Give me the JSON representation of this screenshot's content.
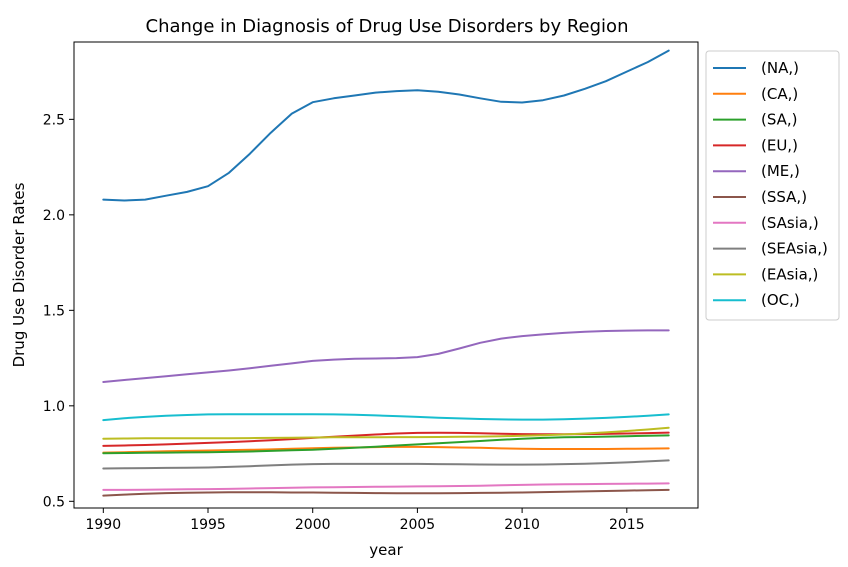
{
  "chart_data": {
    "type": "line",
    "title": "Change in Diagnosis of Drug Use Disorders by Region",
    "xlabel": "year",
    "ylabel": "Drug Use Disorder Rates",
    "xlim": [
      1988.6,
      2018.4
    ],
    "ylim": [
      0.465,
      2.905
    ],
    "xticks": [
      1990,
      1995,
      2000,
      2005,
      2010,
      2015
    ],
    "yticks": [
      0.5,
      1.0,
      1.5,
      2.0,
      2.5
    ],
    "ytick_labels": [
      "0.5",
      "1.0",
      "1.5",
      "2.0",
      "2.5"
    ],
    "grid": false,
    "legend_position": "outside-right-top",
    "x": [
      1990,
      1991,
      1992,
      1993,
      1994,
      1995,
      1996,
      1997,
      1998,
      1999,
      2000,
      2001,
      2002,
      2003,
      2004,
      2005,
      2006,
      2007,
      2008,
      2009,
      2010,
      2011,
      2012,
      2013,
      2014,
      2015,
      2016,
      2017
    ],
    "series": [
      {
        "name": "(NA,)",
        "color": "#1f77b4",
        "values": [
          2.08,
          2.075,
          2.08,
          2.1,
          2.12,
          2.15,
          2.22,
          2.32,
          2.43,
          2.53,
          2.59,
          2.61,
          2.625,
          2.64,
          2.648,
          2.652,
          2.645,
          2.63,
          2.61,
          2.592,
          2.588,
          2.6,
          2.625,
          2.66,
          2.7,
          2.75,
          2.8,
          2.86
        ]
      },
      {
        "name": "(CA,)",
        "color": "#ff7f0e",
        "values": [
          0.755,
          0.757,
          0.76,
          0.762,
          0.764,
          0.766,
          0.768,
          0.77,
          0.772,
          0.775,
          0.778,
          0.78,
          0.782,
          0.784,
          0.785,
          0.785,
          0.784,
          0.782,
          0.78,
          0.777,
          0.775,
          0.774,
          0.774,
          0.774,
          0.774,
          0.775,
          0.776,
          0.777
        ]
      },
      {
        "name": "(SA,)",
        "color": "#2ca02c",
        "values": [
          0.752,
          0.753,
          0.754,
          0.755,
          0.756,
          0.757,
          0.759,
          0.761,
          0.764,
          0.767,
          0.77,
          0.775,
          0.78,
          0.786,
          0.792,
          0.798,
          0.804,
          0.81,
          0.816,
          0.822,
          0.828,
          0.832,
          0.835,
          0.837,
          0.839,
          0.841,
          0.843,
          0.845
        ]
      },
      {
        "name": "(EU,)",
        "color": "#d62728",
        "values": [
          0.79,
          0.792,
          0.795,
          0.798,
          0.802,
          0.806,
          0.81,
          0.815,
          0.82,
          0.826,
          0.832,
          0.838,
          0.844,
          0.85,
          0.855,
          0.858,
          0.859,
          0.858,
          0.856,
          0.854,
          0.852,
          0.851,
          0.851,
          0.852,
          0.853,
          0.855,
          0.857,
          0.86
        ]
      },
      {
        "name": "(ME,)",
        "color": "#9467bd",
        "values": [
          1.125,
          1.135,
          1.145,
          1.155,
          1.165,
          1.175,
          1.185,
          1.197,
          1.21,
          1.222,
          1.235,
          1.242,
          1.246,
          1.248,
          1.25,
          1.255,
          1.272,
          1.3,
          1.33,
          1.352,
          1.365,
          1.374,
          1.382,
          1.388,
          1.392,
          1.394,
          1.395,
          1.395
        ]
      },
      {
        "name": "(SSA,)",
        "color": "#8c564b",
        "values": [
          0.53,
          0.535,
          0.54,
          0.543,
          0.545,
          0.546,
          0.547,
          0.547,
          0.547,
          0.546,
          0.546,
          0.545,
          0.544,
          0.543,
          0.542,
          0.542,
          0.542,
          0.543,
          0.544,
          0.545,
          0.546,
          0.548,
          0.55,
          0.552,
          0.554,
          0.556,
          0.558,
          0.56
        ]
      },
      {
        "name": "(SAsia,)",
        "color": "#e377c2",
        "values": [
          0.56,
          0.56,
          0.561,
          0.562,
          0.563,
          0.564,
          0.565,
          0.567,
          0.569,
          0.571,
          0.573,
          0.574,
          0.575,
          0.576,
          0.577,
          0.578,
          0.579,
          0.58,
          0.582,
          0.584,
          0.586,
          0.588,
          0.589,
          0.59,
          0.591,
          0.592,
          0.593,
          0.594
        ]
      },
      {
        "name": "(SEAsia,)",
        "color": "#7f7f7f",
        "values": [
          0.672,
          0.673,
          0.674,
          0.675,
          0.676,
          0.677,
          0.68,
          0.684,
          0.688,
          0.692,
          0.695,
          0.696,
          0.696,
          0.696,
          0.696,
          0.696,
          0.695,
          0.694,
          0.693,
          0.692,
          0.692,
          0.693,
          0.695,
          0.697,
          0.7,
          0.704,
          0.709,
          0.714
        ]
      },
      {
        "name": "(EAsia,)",
        "color": "#bcbd22",
        "values": [
          0.828,
          0.829,
          0.83,
          0.83,
          0.83,
          0.83,
          0.83,
          0.831,
          0.832,
          0.833,
          0.834,
          0.835,
          0.835,
          0.835,
          0.836,
          0.836,
          0.837,
          0.838,
          0.839,
          0.841,
          0.843,
          0.846,
          0.85,
          0.855,
          0.861,
          0.868,
          0.876,
          0.885
        ]
      },
      {
        "name": "(OC,)",
        "color": "#17becf",
        "values": [
          0.925,
          0.935,
          0.942,
          0.948,
          0.952,
          0.955,
          0.956,
          0.956,
          0.956,
          0.956,
          0.956,
          0.955,
          0.953,
          0.95,
          0.946,
          0.942,
          0.938,
          0.934,
          0.931,
          0.929,
          0.928,
          0.928,
          0.93,
          0.933,
          0.937,
          0.942,
          0.948,
          0.955
        ]
      }
    ]
  }
}
